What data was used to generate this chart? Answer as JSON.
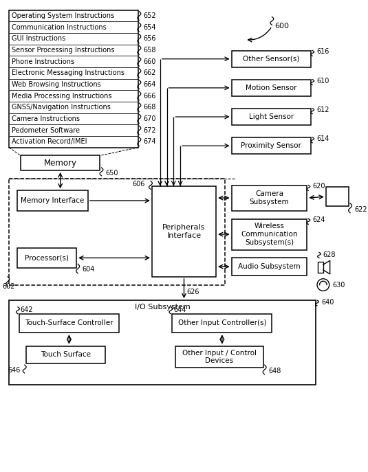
{
  "bg_color": "#ffffff",
  "fig_width": 5.35,
  "fig_height": 6.87,
  "memory_items": [
    "Operating System Instructions",
    "Communication Instructions",
    "GUI Instructions",
    "Sensor Processing Instructions",
    "Phone Instructions",
    "Electronic Messaging Instructions",
    "Web Browsing Instructions",
    "Media Processing Instructions",
    "GNSS/Navigation Instructions",
    "Camera Instructions",
    "Pedometer Software",
    "Activation Record/IMEI"
  ],
  "memory_labels": [
    "652",
    "654",
    "656",
    "658",
    "660",
    "662",
    "664",
    "666",
    "668",
    "670",
    "672",
    "674"
  ],
  "sensor_boxes": [
    {
      "label": "Other Sensor(s)",
      "ref": "616"
    },
    {
      "label": "Motion Sensor",
      "ref": "610"
    },
    {
      "label": "Light Sensor",
      "ref": "612"
    },
    {
      "label": "Proximity Sensor",
      "ref": "614"
    }
  ],
  "subsystem_boxes": [
    {
      "label": "Camera\nSubsystem",
      "ref": "620"
    },
    {
      "label": "Wireless\nCommunication\nSubsystem(s)",
      "ref": "624"
    },
    {
      "label": "Audio Subsystem",
      "ref": "628"
    }
  ],
  "io_label": "I/O Subsystem",
  "io_ref": "640",
  "io_sub_boxes": [
    {
      "label": "Touch-Surface Controller",
      "ref": "642"
    },
    {
      "label": "Other Input Controller(s)",
      "ref": "644"
    }
  ],
  "io_bottom_boxes": [
    {
      "label": "Touch Surface",
      "ref": "646"
    },
    {
      "label": "Other Input / Control\nDevices",
      "ref": "648"
    }
  ],
  "main_ref": "600",
  "peripherals_label": "Peripherals\nInterface",
  "peripherals_ref": "606",
  "memory_box_label": "Memory",
  "memory_box_ref": "650",
  "memory_interface_label": "Memory Interface",
  "processor_label": "Processor(s)",
  "processor_ref": "604",
  "system_ref": "602",
  "io_subsystem_ref": "626"
}
